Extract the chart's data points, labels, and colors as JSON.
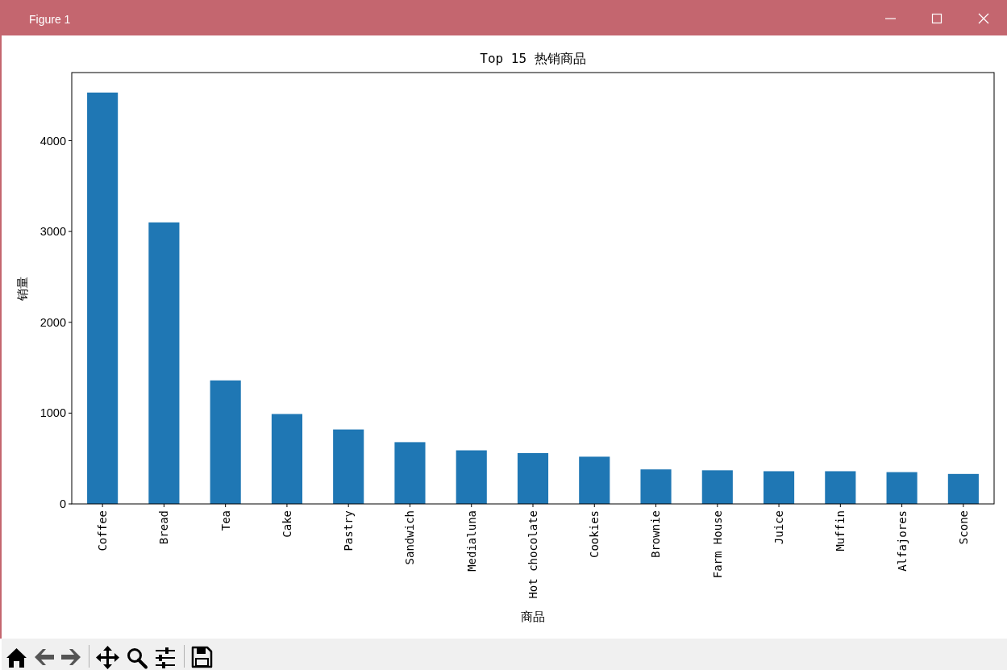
{
  "chart_data": {
    "type": "bar",
    "title": "Top 15 热销商品",
    "xlabel": "商品",
    "ylabel": "销量",
    "categories": [
      "Coffee",
      "Bread",
      "Tea",
      "Cake",
      "Pastry",
      "Sandwich",
      "Medialuna",
      "Hot chocolate",
      "Cookies",
      "Brownie",
      "Farm House",
      "Juice",
      "Muffin",
      "Alfajores",
      "Scone"
    ],
    "values": [
      4530,
      3100,
      1360,
      990,
      820,
      680,
      590,
      560,
      520,
      380,
      370,
      360,
      360,
      350,
      330
    ],
    "color": "#1f77b4",
    "ylim": [
      0,
      4750
    ],
    "yticks": [
      0,
      1000,
      2000,
      3000,
      4000
    ],
    "annotations": [
      "Figure 1"
    ]
  }
}
